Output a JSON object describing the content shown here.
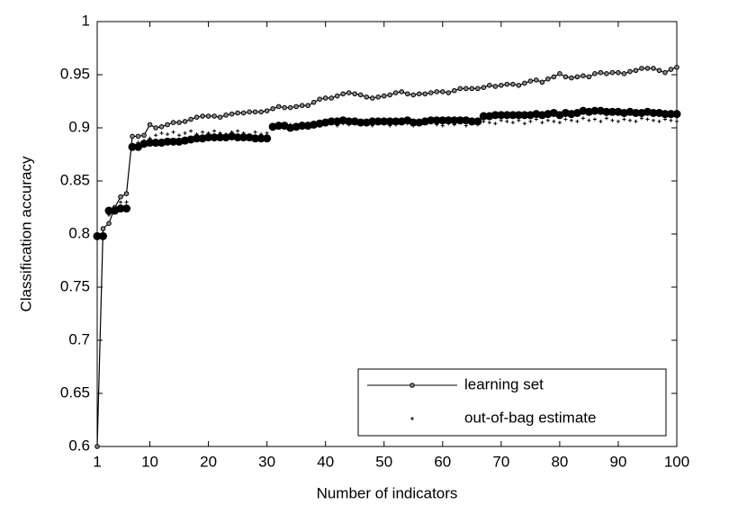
{
  "chart_data": {
    "type": "line",
    "x_label": "Number of indicators",
    "y_label": "Classification accuracy",
    "xlim": [
      1,
      100
    ],
    "xticks": [
      1,
      10,
      20,
      30,
      40,
      50,
      60,
      70,
      80,
      90,
      100
    ],
    "ylim": [
      0.6,
      1
    ],
    "yticks": [
      0.6,
      0.65,
      0.7,
      0.75,
      0.8,
      0.85,
      0.9,
      0.95,
      1
    ],
    "legend": "lower right",
    "series": [
      {
        "name": "learning set",
        "color": "#000000",
        "style": "line-circle",
        "values": [
          0.6,
          0.805,
          0.81,
          0.825,
          0.835,
          0.838,
          0.892,
          0.892,
          0.893,
          0.903,
          0.9,
          0.901,
          0.903,
          0.905,
          0.905,
          0.906,
          0.908,
          0.91,
          0.911,
          0.911,
          0.911,
          0.91,
          0.912,
          0.913,
          0.914,
          0.914,
          0.915,
          0.915,
          0.915,
          0.916,
          0.918,
          0.92,
          0.919,
          0.919,
          0.92,
          0.921,
          0.921,
          0.924,
          0.927,
          0.928,
          0.928,
          0.93,
          0.932,
          0.933,
          0.932,
          0.931,
          0.929,
          0.928,
          0.929,
          0.93,
          0.931,
          0.933,
          0.934,
          0.932,
          0.931,
          0.932,
          0.932,
          0.933,
          0.934,
          0.934,
          0.933,
          0.935,
          0.937,
          0.937,
          0.937,
          0.937,
          0.938,
          0.94,
          0.939,
          0.94,
          0.941,
          0.941,
          0.94,
          0.942,
          0.944,
          0.945,
          0.943,
          0.946,
          0.948,
          0.951,
          0.948,
          0.947,
          0.948,
          0.949,
          0.948,
          0.951,
          0.952,
          0.951,
          0.952,
          0.952,
          0.951,
          0.953,
          0.954,
          0.956,
          0.956,
          0.956,
          0.954,
          0.952,
          0.955,
          0.957
        ]
      },
      {
        "name": "out-of-bag estimate",
        "color": "#000000",
        "style": "plus",
        "values": [
          0.795,
          0.8,
          0.818,
          0.82,
          0.83,
          0.83,
          0.884,
          0.886,
          0.888,
          0.89,
          0.893,
          0.895,
          0.894,
          0.896,
          0.893,
          0.895,
          0.897,
          0.894,
          0.896,
          0.895,
          0.897,
          0.895,
          0.894,
          0.896,
          0.897,
          0.895,
          0.893,
          0.896,
          0.894,
          0.895,
          0.9,
          0.902,
          0.901,
          0.903,
          0.9,
          0.904,
          0.902,
          0.905,
          0.903,
          0.904,
          0.905,
          0.902,
          0.904,
          0.903,
          0.905,
          0.904,
          0.903,
          0.902,
          0.905,
          0.904,
          0.902,
          0.903,
          0.905,
          0.904,
          0.902,
          0.903,
          0.904,
          0.905,
          0.903,
          0.902,
          0.904,
          0.903,
          0.905,
          0.902,
          0.904,
          0.903,
          0.906,
          0.905,
          0.904,
          0.907,
          0.906,
          0.905,
          0.907,
          0.904,
          0.906,
          0.908,
          0.905,
          0.907,
          0.906,
          0.905,
          0.908,
          0.907,
          0.906,
          0.909,
          0.907,
          0.908,
          0.906,
          0.909,
          0.907,
          0.906,
          0.908,
          0.907,
          0.906,
          0.909,
          0.908,
          0.907,
          0.906,
          0.908,
          0.907,
          0.906
        ]
      },
      {
        "color": "#000000",
        "style": "dot",
        "values": [
          0.798,
          0.798,
          0.822,
          0.822,
          0.824,
          0.824,
          0.882,
          0.882,
          0.885,
          0.886,
          0.886,
          0.886,
          0.887,
          0.887,
          0.887,
          0.888,
          0.889,
          0.89,
          0.89,
          0.891,
          0.891,
          0.891,
          0.891,
          0.892,
          0.891,
          0.891,
          0.891,
          0.89,
          0.89,
          0.89,
          0.901,
          0.902,
          0.902,
          0.9,
          0.901,
          0.902,
          0.902,
          0.903,
          0.904,
          0.905,
          0.906,
          0.906,
          0.907,
          0.906,
          0.906,
          0.905,
          0.905,
          0.906,
          0.906,
          0.906,
          0.906,
          0.906,
          0.906,
          0.907,
          0.905,
          0.905,
          0.906,
          0.907,
          0.907,
          0.907,
          0.907,
          0.907,
          0.907,
          0.907,
          0.906,
          0.906,
          0.911,
          0.911,
          0.912,
          0.912,
          0.912,
          0.912,
          0.912,
          0.912,
          0.912,
          0.913,
          0.912,
          0.913,
          0.914,
          0.912,
          0.914,
          0.913,
          0.914,
          0.916,
          0.915,
          0.916,
          0.916,
          0.915,
          0.915,
          0.915,
          0.914,
          0.915,
          0.914,
          0.914,
          0.915,
          0.914,
          0.914,
          0.913,
          0.913,
          0.913
        ]
      }
    ]
  }
}
